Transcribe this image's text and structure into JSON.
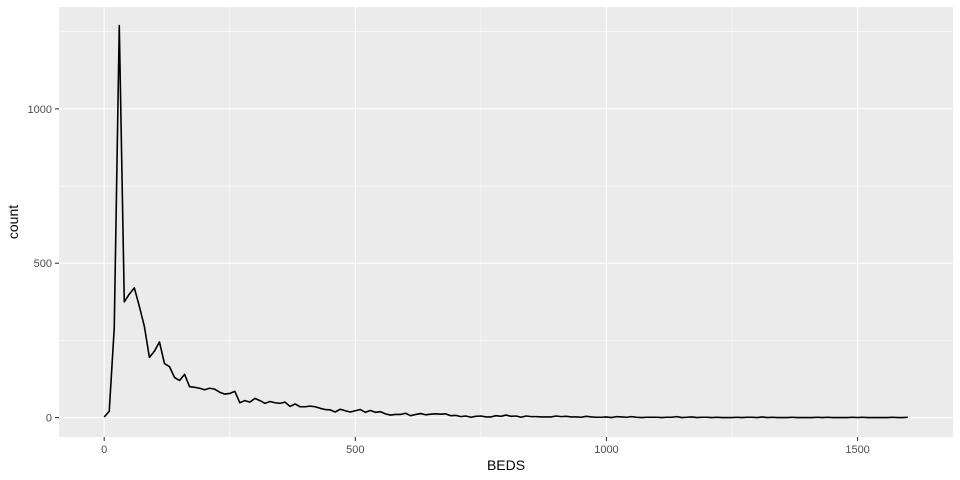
{
  "chart_data": {
    "type": "line",
    "title": "",
    "xlabel": "BEDS",
    "ylabel": "count",
    "xlim": [
      -90,
      1690
    ],
    "ylim": [
      -63,
      1330
    ],
    "xticks": [
      0,
      500,
      1000,
      1500
    ],
    "xtick_labels": [
      "0",
      "500",
      "1000",
      "1500"
    ],
    "yticks": [
      0,
      500,
      1000
    ],
    "ytick_labels": [
      "0",
      "500",
      "1000"
    ],
    "grid": true,
    "legend": "none",
    "colors": {
      "panel": "#ebebeb",
      "grid": "#ffffff",
      "line": "#000000"
    },
    "series": [
      {
        "x": [
          0,
          10,
          20,
          30,
          40,
          50,
          60,
          70,
          80,
          90,
          100,
          110,
          120,
          130,
          140,
          150,
          160,
          170,
          180,
          190,
          200,
          210,
          220,
          230,
          240,
          250,
          260,
          270,
          280,
          290,
          300,
          310,
          320,
          330,
          340,
          350,
          360,
          370,
          380,
          390,
          400,
          410,
          420,
          430,
          440,
          450,
          460,
          470,
          480,
          490,
          500,
          510,
          520,
          530,
          540,
          550,
          560,
          570,
          580,
          590,
          600,
          610,
          620,
          630,
          640,
          650,
          660,
          670,
          680,
          690,
          700,
          710,
          720,
          730,
          740,
          750,
          760,
          770,
          780,
          790,
          800,
          810,
          820,
          830,
          840,
          850,
          860,
          870,
          880,
          890,
          900,
          910,
          920,
          930,
          940,
          950,
          960,
          970,
          980,
          990,
          1000,
          1010,
          1020,
          1030,
          1040,
          1050,
          1060,
          1070,
          1080,
          1090,
          1100,
          1110,
          1120,
          1130,
          1140,
          1150,
          1160,
          1170,
          1180,
          1190,
          1200,
          1210,
          1220,
          1230,
          1240,
          1250,
          1260,
          1270,
          1280,
          1290,
          1300,
          1310,
          1320,
          1330,
          1340,
          1350,
          1360,
          1370,
          1380,
          1390,
          1400,
          1410,
          1420,
          1430,
          1440,
          1450,
          1460,
          1470,
          1480,
          1490,
          1500,
          1510,
          1520,
          1530,
          1540,
          1550,
          1560,
          1570,
          1580,
          1590,
          1600
        ],
        "y": [
          2,
          20,
          290,
          1270,
          375,
          400,
          420,
          360,
          295,
          195,
          215,
          245,
          175,
          165,
          130,
          120,
          140,
          100,
          98,
          95,
          90,
          95,
          92,
          82,
          76,
          78,
          85,
          48,
          55,
          50,
          62,
          55,
          46,
          52,
          48,
          46,
          50,
          36,
          44,
          35,
          35,
          37,
          35,
          30,
          26,
          25,
          18,
          27,
          22,
          18,
          22,
          26,
          17,
          23,
          17,
          19,
          12,
          8,
          10,
          10,
          14,
          6,
          10,
          13,
          9,
          11,
          12,
          11,
          12,
          6,
          7,
          3,
          5,
          1,
          4,
          5,
          2,
          2,
          6,
          4,
          8,
          4,
          5,
          1,
          5,
          3,
          3,
          2,
          2,
          2,
          5,
          3,
          4,
          2,
          2,
          1,
          4,
          2,
          1,
          1,
          2,
          0,
          3,
          2,
          1,
          3,
          1,
          0,
          1,
          1,
          1,
          0,
          1,
          1,
          3,
          0,
          1,
          2,
          0,
          1,
          1,
          0,
          1,
          0,
          0,
          0,
          1,
          0,
          1,
          1,
          0,
          2,
          0,
          1,
          0,
          0,
          0,
          1,
          0,
          0,
          0,
          0,
          1,
          0,
          1,
          0,
          0,
          0,
          0,
          1,
          0,
          1,
          0,
          0,
          0,
          0,
          0,
          1,
          0,
          0,
          1
        ]
      }
    ]
  }
}
